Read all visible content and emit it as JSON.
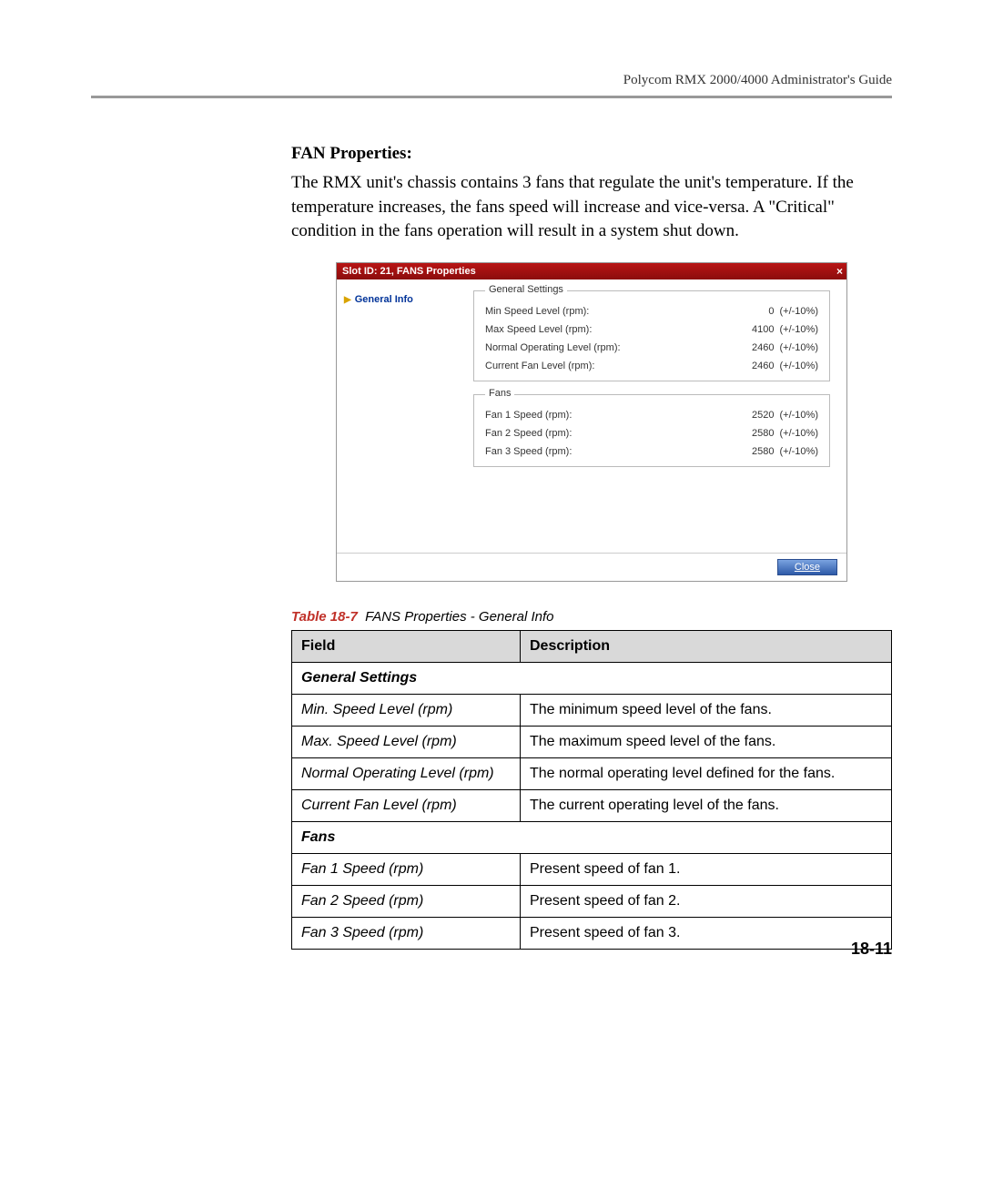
{
  "header": {
    "doc_title": "Polycom RMX 2000/4000 Administrator's Guide"
  },
  "section": {
    "title": "FAN Properties:",
    "body": "The RMX unit's chassis contains 3 fans that regulate the unit's temperature. If the temperature increases, the fans speed will increase and vice-versa. A \"Critical\" condition in the fans operation will result in a system shut down."
  },
  "dialog": {
    "title": "Slot ID: 21, FANS Properties",
    "nav_item": "General Info",
    "close_label": "Close",
    "colors": {
      "titlebar_gradient_top": "#b81414",
      "titlebar_gradient_bottom": "#8b0d0d",
      "button_gradient_top": "#7aa3e0",
      "button_gradient_bottom": "#2e5aa8",
      "nav_text": "#003399"
    },
    "groups": [
      {
        "legend": "General Settings",
        "rows": [
          {
            "label": "Min Speed Level (rpm):",
            "value": "0",
            "tolerance": "(+/-10%)"
          },
          {
            "label": "Max Speed Level (rpm):",
            "value": "4100",
            "tolerance": "(+/-10%)"
          },
          {
            "label": "Normal Operating Level (rpm):",
            "value": "2460",
            "tolerance": "(+/-10%)"
          },
          {
            "label": "Current Fan Level (rpm):",
            "value": "2460",
            "tolerance": "(+/-10%)"
          }
        ]
      },
      {
        "legend": "Fans",
        "rows": [
          {
            "label": "Fan 1 Speed (rpm):",
            "value": "2520",
            "tolerance": "(+/-10%)"
          },
          {
            "label": "Fan 2 Speed (rpm):",
            "value": "2580",
            "tolerance": "(+/-10%)"
          },
          {
            "label": "Fan 3 Speed (rpm):",
            "value": "2580",
            "tolerance": "(+/-10%)"
          }
        ]
      }
    ]
  },
  "table": {
    "caption_number": "Table 18-7",
    "caption_text": "FANS Properties - General Info",
    "headers": {
      "field": "Field",
      "description": "Description"
    },
    "sections": [
      {
        "subhead": "General Settings",
        "rows": [
          {
            "field": "Min. Speed Level (rpm)",
            "description": "The minimum speed level of the fans."
          },
          {
            "field": "Max. Speed Level (rpm)",
            "description": "The maximum speed level of the fans."
          },
          {
            "field": "Normal Operating Level (rpm)",
            "description": "The normal operating level defined for the fans."
          },
          {
            "field": "Current Fan Level (rpm)",
            "description": "The current operating level of the fans."
          }
        ]
      },
      {
        "subhead": "Fans",
        "rows": [
          {
            "field": "Fan 1 Speed (rpm)",
            "description": "Present speed of fan 1."
          },
          {
            "field": "Fan 2 Speed (rpm)",
            "description": "Present speed of fan 2."
          },
          {
            "field": "Fan 3 Speed (rpm)",
            "description": "Present speed of fan 3."
          }
        ]
      }
    ]
  },
  "page_number": "18-11"
}
